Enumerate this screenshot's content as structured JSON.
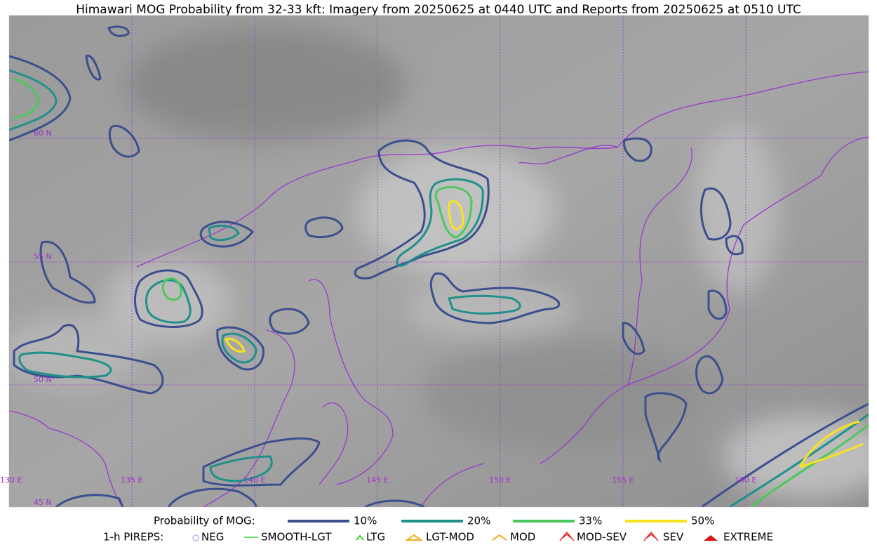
{
  "header": {
    "title": "Himawari MOG Probability from 32-33 kft: Imagery from 20250625 at 0440 UTC and Reports from 20250625 at 0510 UTC"
  },
  "map": {
    "lat_labels": [
      "60 N",
      "55 N",
      "50 N",
      "45 N"
    ],
    "lon_labels": [
      "130 E",
      "135 E",
      "140 E",
      "145 E",
      "150 E",
      "155 E",
      "160 E"
    ]
  },
  "legend": {
    "probability_title": "Probability of MOG:",
    "probability_items": [
      {
        "label": "10%",
        "color": "#3b4f8e"
      },
      {
        "label": "20%",
        "color": "#20908a"
      },
      {
        "label": "33%",
        "color": "#4cc85c"
      },
      {
        "label": "50%",
        "color": "#f7e41c"
      }
    ],
    "pirep_title": "1-h PIREPS:",
    "pirep_items": [
      "NEG",
      "SMOOTH-LGT",
      "LTG",
      "LGT-MOD",
      "MOD",
      "MOD-SEV",
      "SEV",
      "EXTREME"
    ]
  }
}
